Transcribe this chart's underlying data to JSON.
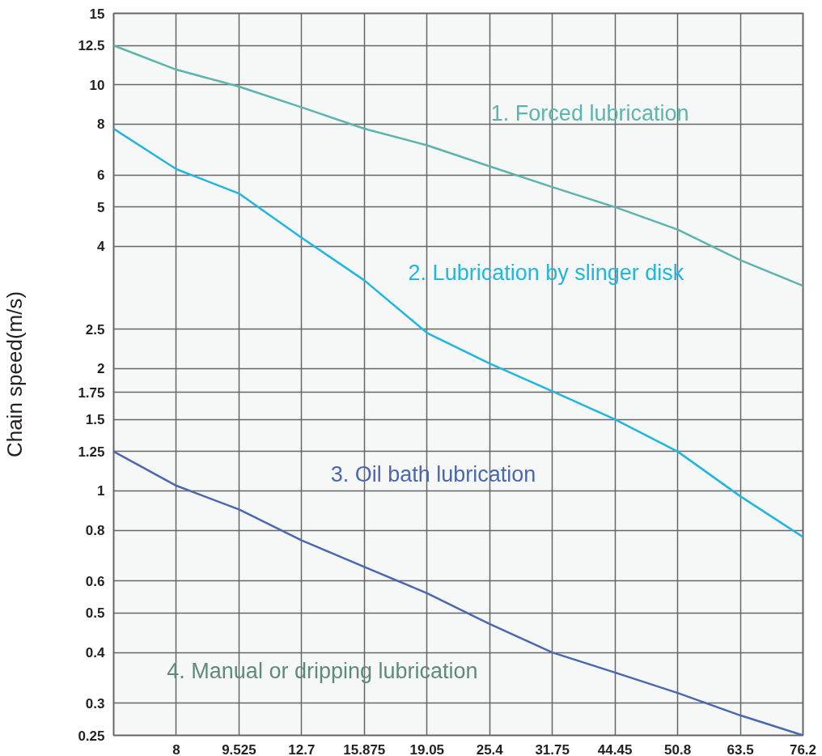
{
  "chart_data": {
    "type": "line",
    "ylabel": "Chain speed(m/s)",
    "categories": [
      null,
      "8",
      "9.525",
      "12.7",
      "15.875",
      "19.05",
      "25.4",
      "31.75",
      "44.45",
      "50.8",
      "63.5",
      "76.2"
    ],
    "series": [
      {
        "name": "1. Forced lubrication",
        "color": "#5bb5ac",
        "values": [
          12.5,
          10.9,
          9.9,
          8.8,
          7.8,
          7.1,
          6.3,
          5.6,
          5.0,
          4.4,
          3.7,
          3.2
        ]
      },
      {
        "name": "2. Lubrication by slinger disk",
        "color": "#1fb6e0",
        "values": [
          7.8,
          6.2,
          5.4,
          4.2,
          3.3,
          2.45,
          2.06,
          1.76,
          1.5,
          1.25,
          0.97,
          0.77
        ]
      },
      {
        "name": "3. Oil bath lubrication",
        "color": "#4a67b0",
        "values": [
          1.25,
          1.03,
          0.9,
          0.755,
          0.65,
          0.56,
          0.47,
          0.4,
          0.357,
          0.318,
          0.28,
          0.25
        ]
      }
    ],
    "annotations": [
      "4. Manual or dripping lubrication"
    ],
    "ylim": [
      0.25,
      15
    ],
    "yticks": [
      0.25,
      0.3,
      0.4,
      0.5,
      0.6,
      0.8,
      1,
      1.25,
      1.5,
      1.75,
      2,
      2.5,
      4,
      5,
      6,
      8,
      10,
      12.5,
      15
    ],
    "log": "y",
    "grid": true,
    "marker": "none",
    "line_style": "solid"
  }
}
